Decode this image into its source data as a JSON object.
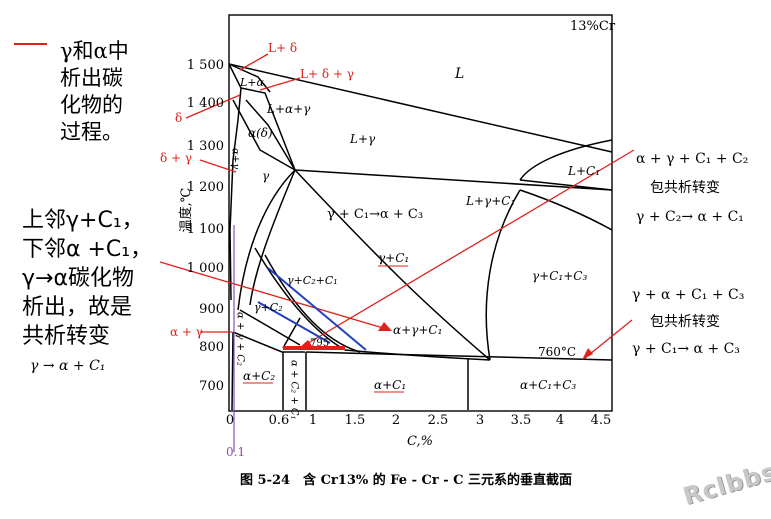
{
  "diagram": {
    "corner_label": "13%Cr",
    "caption": "图 5-24　含 Cr13% 的 Fe - Cr - C 三元系的垂直截面",
    "x_axis_label": "C,%",
    "y_axis_label": "温度,℃",
    "x_ticks": [
      "0",
      "0.6",
      "1",
      "1.5",
      "2",
      "2.5",
      "3",
      "3.5",
      "4",
      "4.5"
    ],
    "y_ticks": [
      "1 500",
      "1 400",
      "1 300",
      "1 200",
      "1 100",
      "1 000",
      "900",
      "800",
      "700"
    ],
    "regions": {
      "L": "L",
      "L_alpha": "L+α",
      "L_alpha_gamma": "L+α+γ",
      "L_gamma": "L+γ",
      "alpha_delta": "α(δ)",
      "alpha_gamma": "α+γ",
      "gamma": "γ",
      "L_C1": "L+C₁",
      "L_gamma_C1": "L+γ+C₁",
      "peritectoid_upper": "γ + C₁→α + C₃",
      "gamma_C1": "γ+C₁",
      "gamma_C1_C3": "γ+C₁+C₃",
      "gamma_C2_C1": "γ+C₂+C₁",
      "gamma_C2": "γ+C₂",
      "alpha_gamma_C2": "α + γ + C₂",
      "alpha_gamma_C1": "α+γ+C₁",
      "alpha_C2": "α+C₂",
      "alpha_C2_C1": "α + C₂ + C₁",
      "alpha_C1": "α+C₁",
      "alpha_C1_C3": "α+C₁+C₃",
      "t795": "795",
      "t760": "760°C"
    }
  },
  "annotations": {
    "L_delta": "L+ δ",
    "L_delta_gamma": "L+ δ + γ",
    "delta": "δ",
    "delta_gamma": "δ + γ",
    "alpha_gamma": "α + γ",
    "zero_one": "0.1"
  },
  "legend_text": {
    "line1": "γ和α中",
    "line2": "析出碳",
    "line3": "化物的",
    "line4": "过程。"
  },
  "left_note": {
    "line1": "上邻γ+C₁，",
    "line2": "下邻α +C₁，",
    "line3": "γ→α碳化物",
    "line4": "析出，故是",
    "line5": "共析转变",
    "formula": "γ → α + C₁"
  },
  "right_note_top": {
    "line1": "α + γ + C₁ + C₂",
    "line2": "包共析转变",
    "line3": "γ + C₂→ α + C₁"
  },
  "right_note_bottom": {
    "line1": "γ + α + C₁ + C₃",
    "line2": "包共析转变",
    "line3": "γ + C₁→ α + C₃"
  },
  "watermark": "Rclbbs",
  "colors": {
    "red": "#e0201a",
    "blue": "#2040c0",
    "purple": "#8a4fb0"
  }
}
